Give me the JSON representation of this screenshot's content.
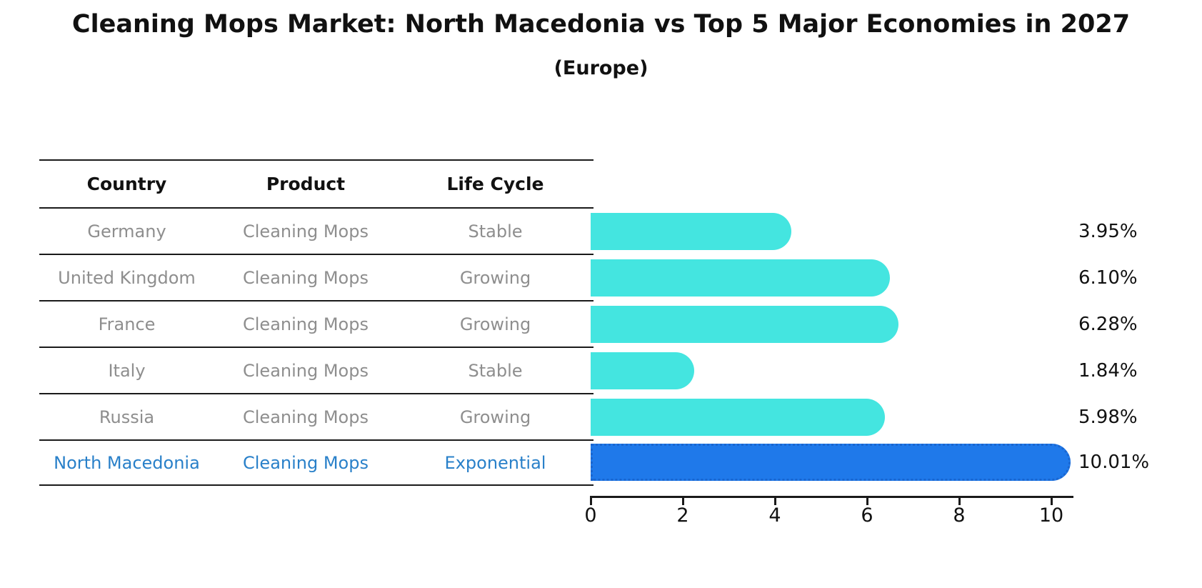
{
  "header": {
    "title": "Cleaning Mops Market: North Macedonia vs Top 5 Major Economies in 2027",
    "subtitle": "(Europe)"
  },
  "table": {
    "headers": [
      "Country",
      "Product",
      "Life Cycle"
    ],
    "rows": [
      {
        "country": "Germany",
        "product": "Cleaning Mops",
        "life_cycle": "Stable",
        "highlighted": false
      },
      {
        "country": "United Kingdom",
        "product": "Cleaning Mops",
        "life_cycle": "Growing",
        "highlighted": false
      },
      {
        "country": "France",
        "product": "Cleaning Mops",
        "life_cycle": "Growing",
        "highlighted": false
      },
      {
        "country": "Italy",
        "product": "Cleaning Mops",
        "life_cycle": "Stable",
        "highlighted": false
      },
      {
        "country": "Russia",
        "product": "Cleaning Mops",
        "life_cycle": "Growing",
        "highlighted": false
      },
      {
        "country": "North Macedonia",
        "product": "Cleaning Mops",
        "life_cycle": "Exponential",
        "highlighted": true
      }
    ]
  },
  "chart_data": {
    "type": "bar",
    "orientation": "horizontal",
    "title": "Cleaning Mops Market: North Macedonia vs Top 5 Major Economies in 2027",
    "subtitle": "(Europe)",
    "categories": [
      "Germany",
      "United Kingdom",
      "France",
      "Italy",
      "Russia",
      "North Macedonia"
    ],
    "values": [
      3.95,
      6.1,
      6.28,
      1.84,
      5.98,
      10.01
    ],
    "value_labels": [
      "3.95%",
      "6.10%",
      "6.28%",
      "1.84%",
      "5.98%",
      "10.01%"
    ],
    "xlabel": "",
    "ylabel": "",
    "xlim": [
      0,
      10.45
    ],
    "xticks": [
      "0",
      "2",
      "4",
      "6",
      "8",
      "10"
    ],
    "grid": false,
    "legend": false,
    "bar_color": "#44e5e0",
    "highlight_color": "#1f79ea",
    "highlight_index": 5,
    "highlight_row_text_color": "#2980c9"
  }
}
